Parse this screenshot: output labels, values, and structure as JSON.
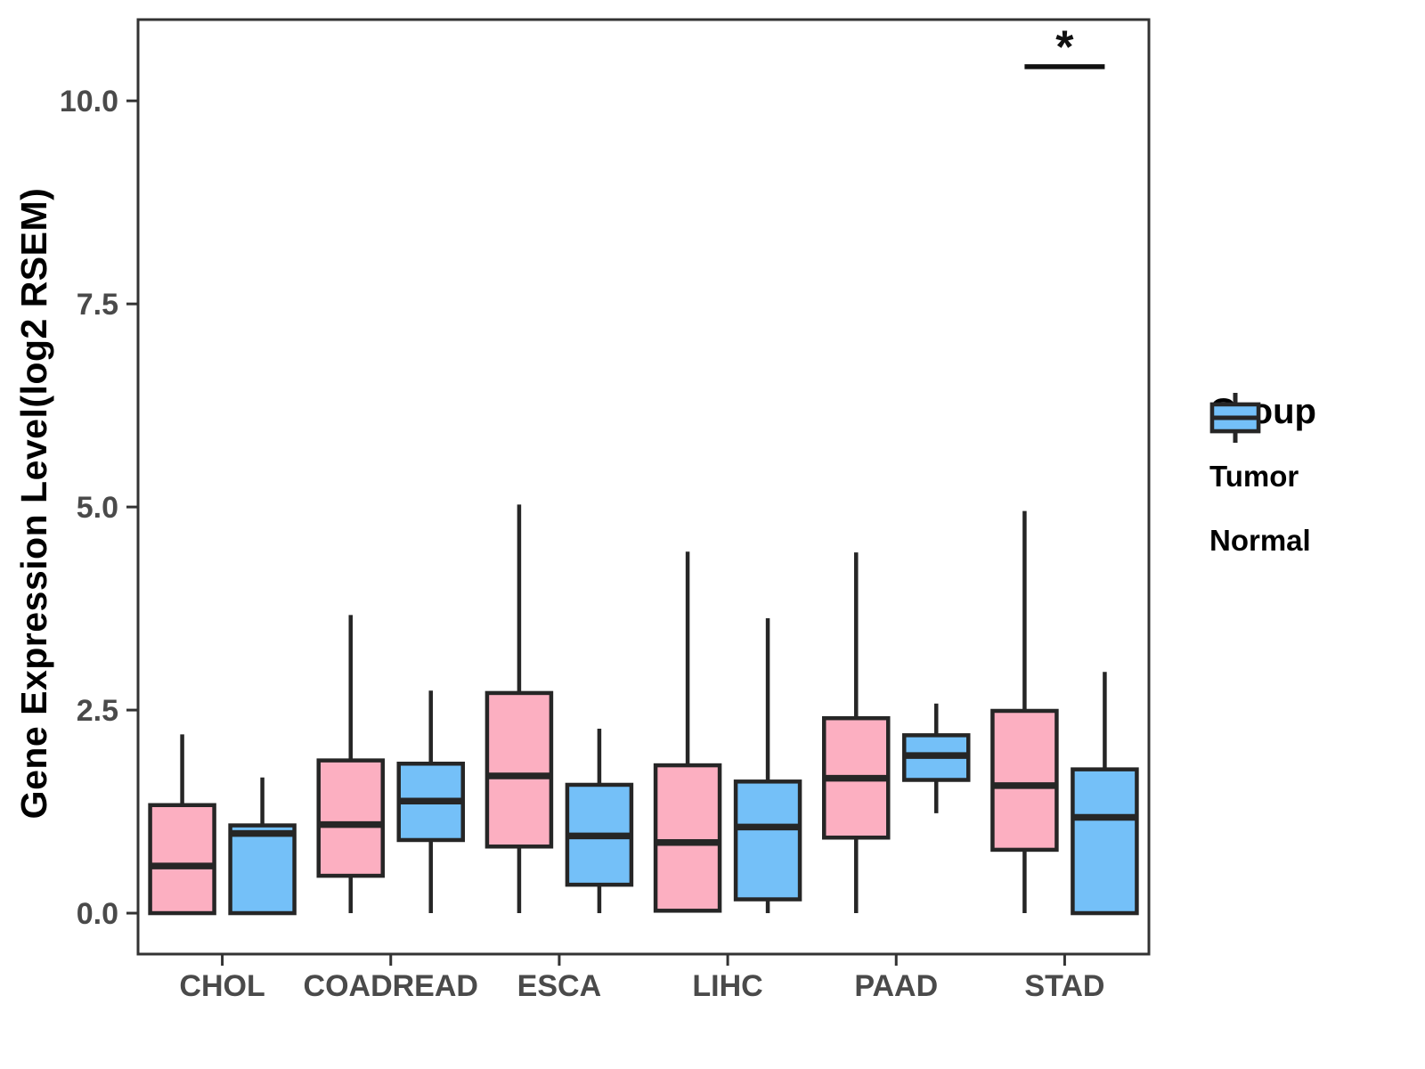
{
  "figure": {
    "y_axis_title": "Gene Expression Level(log2 RSEM)"
  },
  "legend": {
    "title": "Group",
    "entries": [
      {
        "label": "Tumor",
        "color": "#FCAFC1"
      },
      {
        "label": "Normal",
        "color": "#74C0F8"
      }
    ]
  },
  "chart_data": {
    "type": "boxplot",
    "title": "",
    "xlabel": "",
    "ylabel": "Gene Expression Level(log2 RSEM)",
    "categories": [
      "CHOL",
      "COADREAD",
      "ESCA",
      "LIHC",
      "PAAD",
      "STAD"
    ],
    "ylim": [
      -0.504,
      11.0
    ],
    "yticks": [
      0.0,
      2.5,
      5.0,
      7.5,
      10.0
    ],
    "ytick_labels": [
      "0.0",
      "2.5",
      "5.0",
      "7.5",
      "10.0"
    ],
    "grid": "off",
    "legend_position": "right",
    "series": [
      {
        "name": "Tumor",
        "fill": "#FCAFC1",
        "stroke": "#262626",
        "boxes": [
          {
            "category": "CHOL",
            "min": 0.0,
            "q1": 0.0,
            "median": 0.58,
            "q3": 1.33,
            "max": 2.2
          },
          {
            "category": "COADREAD",
            "min": 0.0,
            "q1": 0.46,
            "median": 1.09,
            "q3": 1.88,
            "max": 3.67
          },
          {
            "category": "ESCA",
            "min": 0.0,
            "q1": 0.82,
            "median": 1.69,
            "q3": 2.71,
            "max": 5.03
          },
          {
            "category": "LIHC",
            "min": 0.03,
            "q1": 0.03,
            "median": 0.87,
            "q3": 1.82,
            "max": 4.45
          },
          {
            "category": "PAAD",
            "min": 0.0,
            "q1": 0.93,
            "median": 1.66,
            "q3": 2.4,
            "max": 4.44
          },
          {
            "category": "STAD",
            "min": 0.0,
            "q1": 0.78,
            "median": 1.57,
            "q3": 2.49,
            "max": 4.95
          }
        ]
      },
      {
        "name": "Normal",
        "fill": "#74C0F8",
        "stroke": "#262626",
        "boxes": [
          {
            "category": "CHOL",
            "min": 0.0,
            "q1": 0.0,
            "median": 0.98,
            "q3": 1.08,
            "max": 1.67
          },
          {
            "category": "COADREAD",
            "min": 0.0,
            "q1": 0.9,
            "median": 1.38,
            "q3": 1.84,
            "max": 2.74
          },
          {
            "category": "ESCA",
            "min": 0.0,
            "q1": 0.35,
            "median": 0.95,
            "q3": 1.58,
            "max": 2.27
          },
          {
            "category": "LIHC",
            "min": 0.0,
            "q1": 0.17,
            "median": 1.06,
            "q3": 1.62,
            "max": 3.63
          },
          {
            "category": "PAAD",
            "min": 1.23,
            "q1": 1.64,
            "median": 1.94,
            "q3": 2.19,
            "max": 2.58
          },
          {
            "category": "STAD",
            "min": 0.0,
            "q1": 0.0,
            "median": 1.18,
            "q3": 1.77,
            "max": 2.97
          }
        ]
      }
    ],
    "annotations": [
      {
        "kind": "significance",
        "category": "STAD",
        "label": "*",
        "bar_y": 10.42,
        "star_y": 10.62
      }
    ]
  }
}
